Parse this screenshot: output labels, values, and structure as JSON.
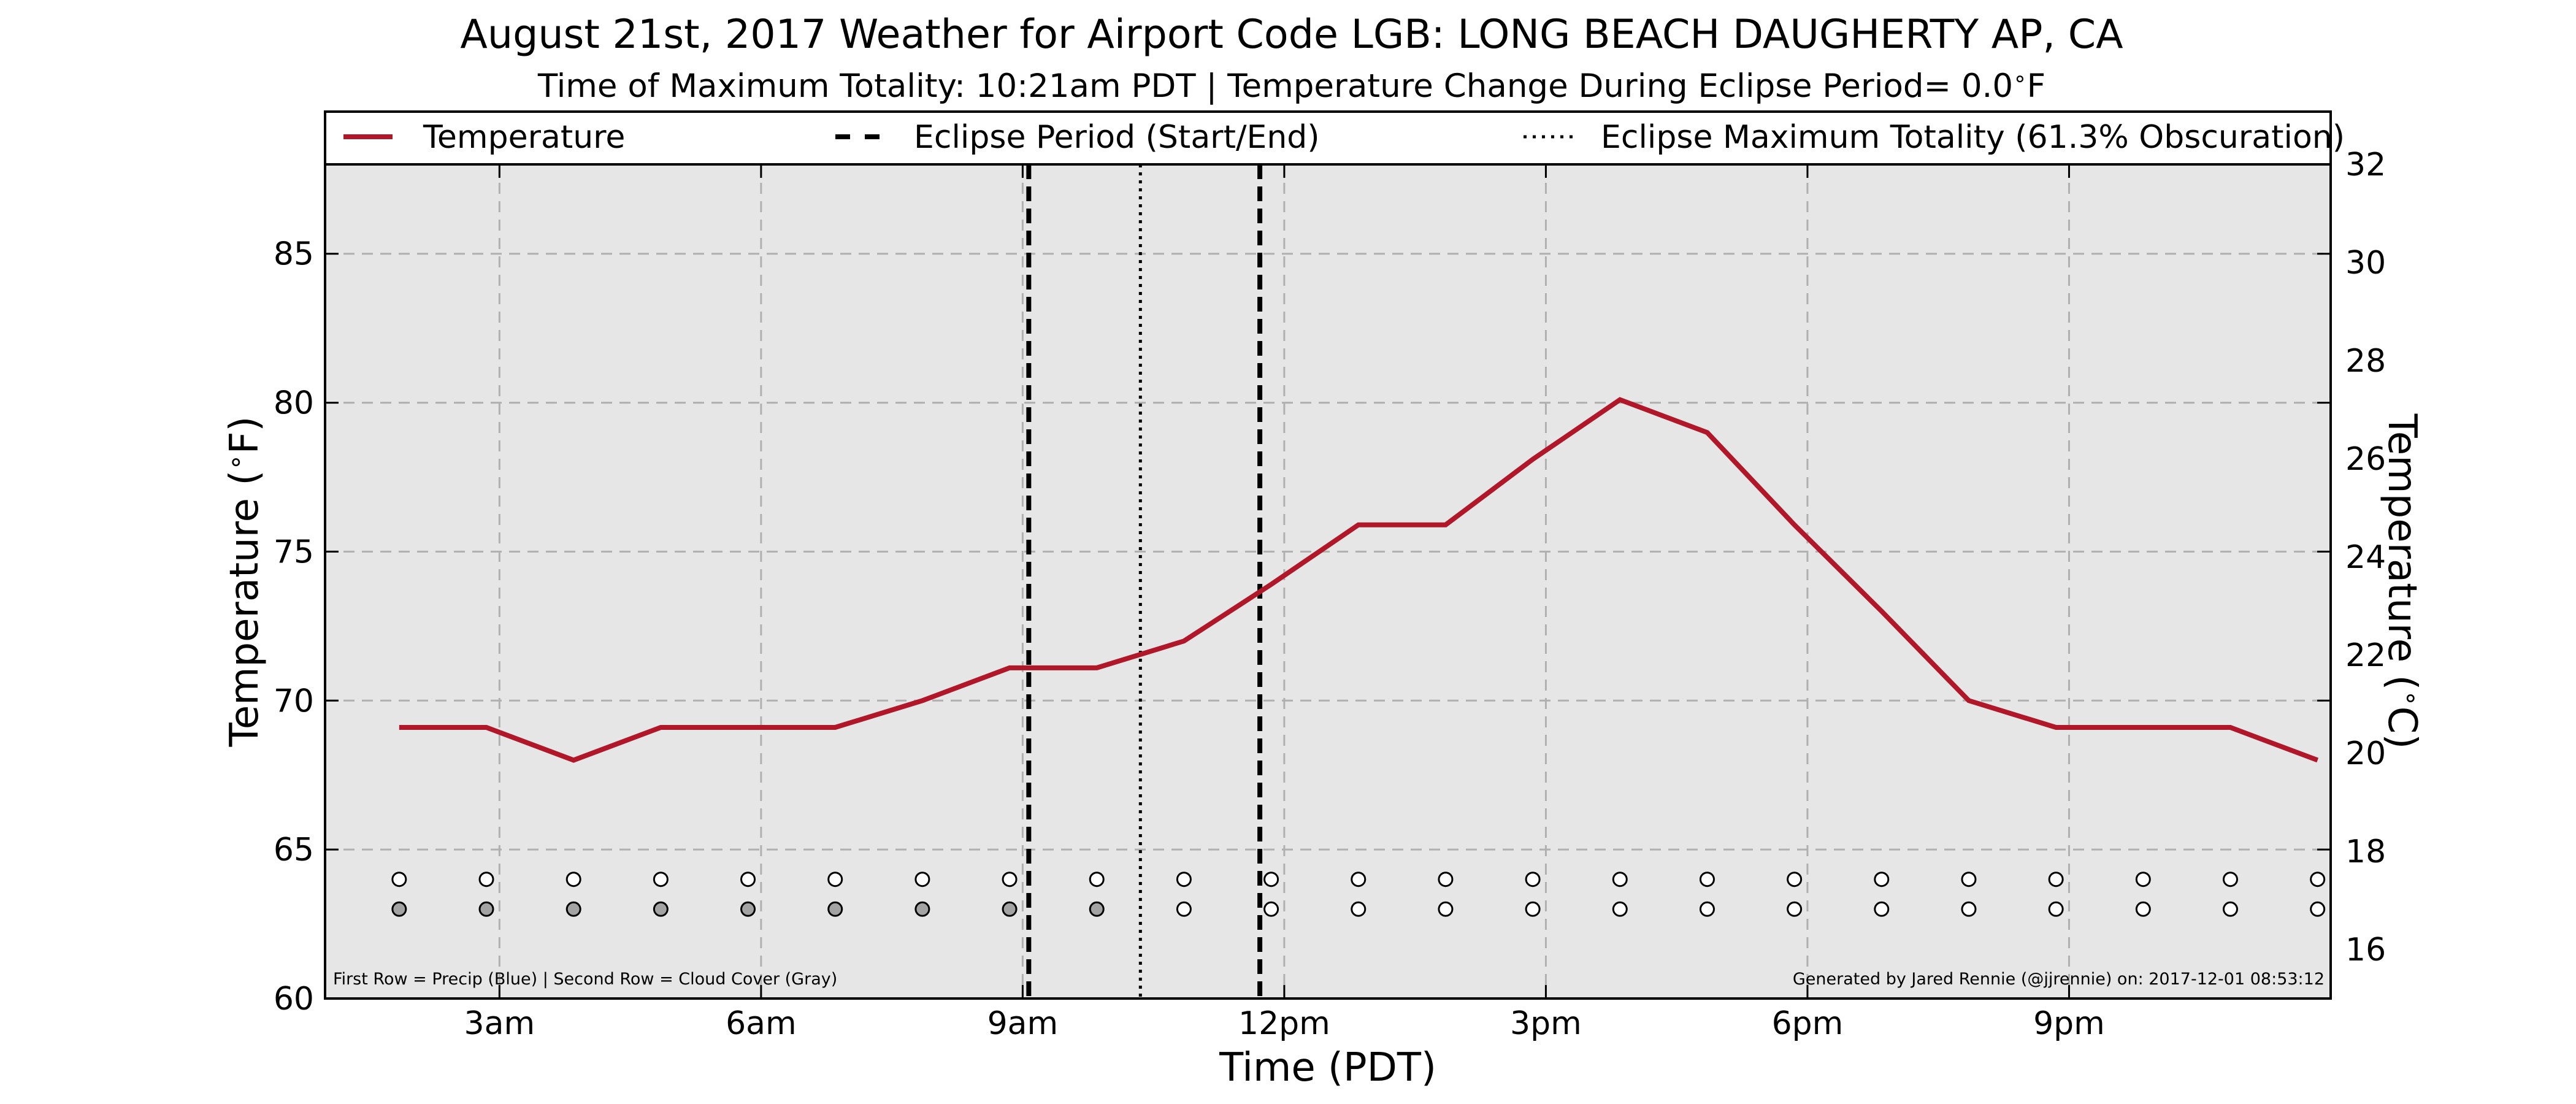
{
  "colors": {
    "temperature_line": "#b0182a",
    "plot_background": "#e6e6e6",
    "grid": "#b0b0b0",
    "cloud_cover_fill": "#a3a3a3",
    "empty_marker_fill": "#ffffff"
  },
  "chart_data": {
    "type": "line",
    "title": "August 21st, 2017 Weather for Airport Code LGB: LONG BEACH DAUGHERTY AP, CA",
    "subtitle": "Time of Maximum Totality: 10:21am PDT | Temperature Change During Eclipse Period= 0.0$^\\circ$F",
    "subtitle_main": "Time of Maximum Totality: 10:21am PDT | Temperature Change During Eclipse Period= 0.0",
    "subtitle_degree": "∘",
    "subtitle_unit": "F",
    "xlabel": "Time (PDT)",
    "ylabel_left_main": "Temperature (",
    "ylabel_left_degree": "∘",
    "ylabel_left_unit": "F)",
    "ylabel_right_main": "Temperature (",
    "ylabel_right_degree": "∘",
    "ylabel_right_unit": "C)",
    "ylim": [
      60,
      88
    ],
    "ylim_celsius": [
      15.0,
      32.0
    ],
    "xlim_hours": [
      1.0,
      24.0
    ],
    "grid": true,
    "legend_placement": "top, above plot",
    "legend": [
      {
        "label": "Temperature",
        "style": "solid"
      },
      {
        "label": "Eclipse Period (Start/End)",
        "style": "dashed"
      },
      {
        "label": "Eclipse Maximum Totality (61.3% Obscuration)",
        "style": "dotted"
      }
    ],
    "x_ticks": [
      {
        "hour": 3,
        "label": "3am"
      },
      {
        "hour": 6,
        "label": "6am"
      },
      {
        "hour": 9,
        "label": "9am"
      },
      {
        "hour": 12,
        "label": "12pm"
      },
      {
        "hour": 15,
        "label": "3pm"
      },
      {
        "hour": 18,
        "label": "6pm"
      },
      {
        "hour": 21,
        "label": "9pm"
      }
    ],
    "y_ticks_f": [
      60,
      65,
      70,
      75,
      80,
      85
    ],
    "y_ticks_c": [
      16,
      18,
      20,
      22,
      24,
      26,
      28,
      30,
      32
    ],
    "series": [
      {
        "name": "Temperature",
        "x_hours": [
          1.85,
          2.85,
          3.85,
          4.85,
          5.85,
          6.85,
          7.85,
          8.85,
          9.85,
          10.85,
          11.85,
          12.85,
          13.85,
          14.85,
          15.85,
          16.85,
          17.85,
          18.85,
          19.85,
          20.85,
          21.85,
          22.85,
          23.85
        ],
        "values": [
          69.1,
          69.1,
          68.0,
          69.1,
          69.1,
          69.1,
          70.0,
          71.1,
          71.1,
          72.0,
          73.9,
          75.9,
          75.9,
          78.1,
          80.1,
          79.0,
          75.9,
          73.0,
          70.0,
          69.1,
          69.1,
          69.1,
          68.0
        ]
      }
    ],
    "eclipse_start_hour": 9.07,
    "eclipse_end_hour": 11.72,
    "eclipse_max_hour": 10.35,
    "marker_rows": {
      "x_hours": [
        1.85,
        2.85,
        3.85,
        4.85,
        5.85,
        6.85,
        7.85,
        8.85,
        9.85,
        10.85,
        11.85,
        12.85,
        13.85,
        14.85,
        15.85,
        16.85,
        17.85,
        18.85,
        19.85,
        20.85,
        21.85,
        22.85,
        23.85
      ],
      "precip_y": 64.0,
      "cloud_y": 63.0,
      "precip_filled": [
        false,
        false,
        false,
        false,
        false,
        false,
        false,
        false,
        false,
        false,
        false,
        false,
        false,
        false,
        false,
        false,
        false,
        false,
        false,
        false,
        false,
        false,
        false
      ],
      "cloud_filled": [
        true,
        true,
        true,
        true,
        true,
        true,
        true,
        true,
        true,
        false,
        false,
        false,
        false,
        false,
        false,
        false,
        false,
        false,
        false,
        false,
        false,
        false,
        false
      ]
    },
    "footnote_left": "First Row = Precip (Blue) | Second Row = Cloud Cover (Gray)",
    "footnote_right": "Generated by Jared Rennie (@jjrennie) on: 2017-12-01 08:53:12"
  }
}
